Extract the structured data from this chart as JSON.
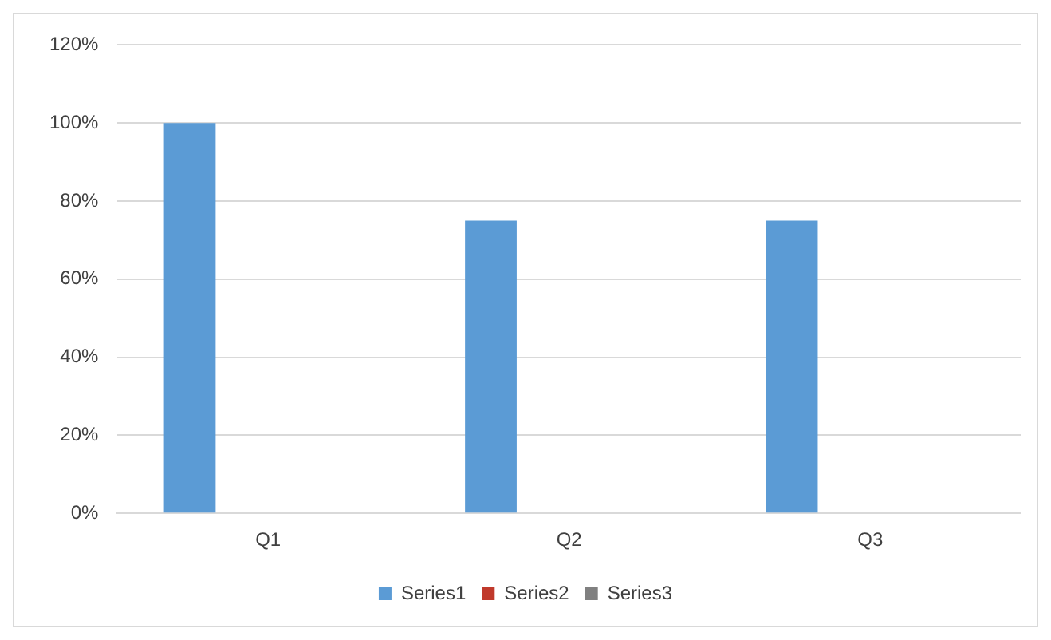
{
  "chart_data": {
    "type": "bar",
    "categories": [
      "Q1",
      "Q2",
      "Q3"
    ],
    "series": [
      {
        "name": "Series1",
        "color": "#5b9bd5",
        "values": [
          100,
          75,
          75
        ]
      },
      {
        "name": "Series2",
        "color": "#c0392b",
        "values": [
          null,
          null,
          null
        ]
      },
      {
        "name": "Series3",
        "color": "#808080",
        "values": [
          null,
          null,
          null
        ]
      }
    ],
    "ylim": [
      0,
      120
    ],
    "yticks": [
      {
        "value": 0,
        "label": "0%"
      },
      {
        "value": 20,
        "label": "20%"
      },
      {
        "value": 40,
        "label": "40%"
      },
      {
        "value": 60,
        "label": "60%"
      },
      {
        "value": 80,
        "label": "80%"
      },
      {
        "value": 100,
        "label": "100%"
      },
      {
        "value": 120,
        "label": "120%"
      }
    ],
    "grid": "y",
    "legend": "bottom"
  }
}
